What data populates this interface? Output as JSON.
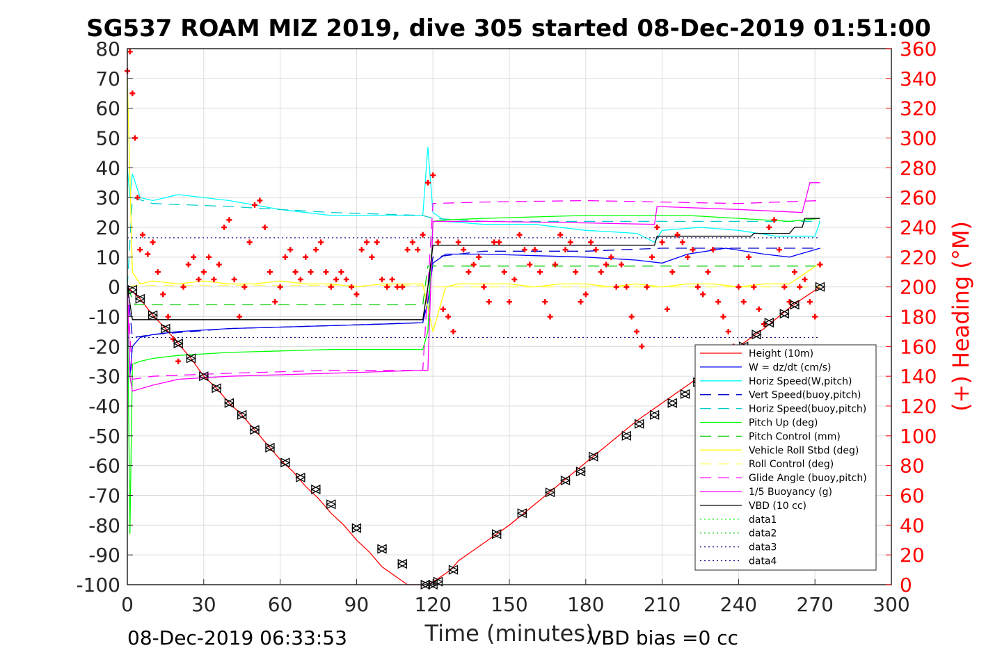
{
  "chart_data": {
    "type": "line",
    "title": "SG537 ROAM MIZ 2019, dive 305 started 08-Dec-2019 01:51:00",
    "xlabel": "Time (minutes)",
    "ylabel_right": "(+) Heading (°M)",
    "footer_left": "08-Dec-2019 06:33:53",
    "footer_right": "VBD bias =0 cc",
    "xlim": [
      0,
      300
    ],
    "ylim": [
      -100,
      80
    ],
    "ylim_right": [
      0,
      360
    ],
    "xticks": [
      "0",
      "30",
      "60",
      "90",
      "120",
      "150",
      "180",
      "210",
      "240",
      "270",
      "300"
    ],
    "yticks": [
      "80",
      "70",
      "60",
      "50",
      "40",
      "30",
      "20",
      "10",
      "0",
      "-10",
      "-20",
      "-30",
      "-40",
      "-50",
      "-60",
      "-70",
      "-80",
      "-90",
      "-100"
    ],
    "yticks_right": [
      "360",
      "340",
      "320",
      "300",
      "280",
      "260",
      "240",
      "220",
      "200",
      "180",
      "160",
      "140",
      "120",
      "100",
      "80",
      "60",
      "40",
      "20",
      "0"
    ],
    "grid": true,
    "legend_position": "bottom-right",
    "series": [
      {
        "name": "Height (10m)",
        "color": "#ff0000",
        "style": "solid",
        "x": [
          0,
          5,
          10,
          15,
          20,
          25,
          30,
          35,
          40,
          45,
          50,
          55,
          60,
          65,
          70,
          75,
          80,
          85,
          90,
          95,
          100,
          105,
          110,
          115,
          118,
          122,
          127,
          130,
          140,
          150,
          160,
          170,
          180,
          190,
          200,
          210,
          220,
          230,
          240,
          250,
          260,
          265,
          272
        ],
        "y": [
          0,
          -4,
          -9.5,
          -14,
          -19,
          -24,
          -30,
          -34,
          -39,
          -43,
          -48,
          -53,
          -58,
          -62,
          -67,
          -71,
          -76,
          -80,
          -85,
          -89,
          -94,
          -97,
          -100,
          -100,
          -100,
          -98,
          -95,
          -92,
          -86,
          -80,
          -73,
          -66,
          -59,
          -52,
          -45,
          -39,
          -33,
          -27,
          -20,
          -14,
          -7,
          -4,
          0
        ]
      },
      {
        "name": "W = dz/dt (cm/s)",
        "color": "#0000ff",
        "style": "solid",
        "x": [
          0,
          1,
          2,
          5,
          10,
          20,
          40,
          60,
          80,
          100,
          116,
          118,
          120,
          125,
          140,
          160,
          180,
          200,
          210,
          220,
          235,
          250,
          260,
          272
        ],
        "y": [
          0,
          -30,
          -20,
          -17,
          -16,
          -15,
          -14,
          -13.5,
          -13,
          -12.5,
          -12,
          -5,
          8,
          11,
          11,
          10.5,
          10,
          9,
          8,
          11,
          13,
          11,
          10,
          13
        ]
      },
      {
        "name": "Horiz Speed(W,pitch)",
        "color": "#00ffff",
        "style": "solid",
        "x": [
          0,
          1,
          2,
          5,
          10,
          20,
          40,
          60,
          80,
          100,
          116,
          118,
          120,
          125,
          140,
          160,
          180,
          200,
          207,
          210,
          225,
          240,
          255,
          270,
          272
        ],
        "y": [
          40,
          30,
          38,
          30,
          29,
          31,
          29,
          26,
          24,
          24,
          24,
          47,
          25,
          22,
          21,
          21,
          19,
          18,
          15,
          19,
          20,
          19,
          17,
          17,
          22
        ]
      },
      {
        "name": "Vert Speed(buoy,pitch)",
        "color": "#0000cc",
        "style": "dash",
        "x": [
          0,
          2,
          10,
          40,
          80,
          116,
          120,
          140,
          180,
          210,
          240,
          272
        ],
        "y": [
          0,
          -17,
          -16,
          -14,
          -13,
          -12,
          10,
          12,
          12,
          13,
          13,
          13
        ]
      },
      {
        "name": "Horiz Speed(buoy,pitch)",
        "color": "#00cccc",
        "style": "dash",
        "x": [
          0,
          2,
          10,
          40,
          80,
          116,
          120,
          140,
          180,
          210,
          240,
          272
        ],
        "y": [
          0,
          30,
          28,
          27,
          25,
          24,
          23,
          22,
          22,
          22,
          22,
          22
        ]
      },
      {
        "name": "Pitch Up (deg)",
        "color": "#00ff00",
        "style": "solid",
        "x": [
          0,
          1,
          2,
          5,
          10,
          20,
          40,
          60,
          80,
          100,
          116,
          118,
          120,
          125,
          140,
          160,
          180,
          200,
          220,
          240,
          260,
          272
        ],
        "y": [
          0,
          -83,
          -26,
          -25,
          -24,
          -23,
          -22,
          -21.5,
          -21,
          -21,
          -21,
          -15,
          22,
          22.5,
          23,
          23.5,
          24,
          24,
          24,
          23,
          22,
          23
        ]
      },
      {
        "name": "Pitch Control (mm)",
        "color": "#00cc00",
        "style": "dash",
        "x": [
          0,
          3,
          116,
          118,
          272
        ],
        "y": [
          0,
          -6,
          -6,
          7,
          7
        ]
      },
      {
        "name": "Vehicle Roll Stbd (deg)",
        "color": "#ffff00",
        "style": "solid",
        "x": [
          0,
          2,
          5,
          10,
          20,
          30,
          40,
          50,
          60,
          70,
          80,
          90,
          100,
          110,
          116,
          120,
          125,
          130,
          140,
          150,
          160,
          170,
          180,
          190,
          200,
          210,
          220,
          230,
          240,
          250,
          260,
          272
        ],
        "y": [
          70,
          5,
          1,
          2,
          1,
          2,
          1,
          1,
          2,
          1,
          1,
          0,
          1,
          1,
          1,
          -15,
          0,
          1,
          1,
          1,
          0,
          1,
          1,
          0,
          1,
          0,
          1,
          1,
          0,
          1,
          1,
          8
        ]
      },
      {
        "name": "Roll Control (deg)",
        "color": "#ffff66",
        "style": "dash",
        "x": [
          0,
          3,
          116,
          118,
          272
        ],
        "y": [
          0,
          0.5,
          0.5,
          0,
          0
        ]
      },
      {
        "name": "Glide Angle (buoy,pitch)",
        "color": "#ff00ff",
        "style": "dash",
        "x": [
          0,
          2,
          10,
          40,
          80,
          116,
          120,
          140,
          180,
          210,
          240,
          272
        ],
        "y": [
          0,
          -31,
          -30,
          -29,
          -28,
          -28,
          28,
          28.5,
          29,
          28.5,
          28,
          29
        ]
      },
      {
        "name": "1/5 Buoyancy (g)",
        "color": "#ff00ff",
        "style": "solid",
        "x": [
          0,
          1,
          2,
          10,
          20,
          40,
          80,
          116,
          118,
          120,
          140,
          180,
          207,
          208,
          240,
          265,
          268,
          272
        ],
        "y": [
          0,
          -30,
          -35,
          -33,
          -31,
          -30,
          -29,
          -28,
          -28,
          22,
          22,
          21.5,
          21,
          27,
          26,
          25,
          35,
          35
        ]
      },
      {
        "name": "VBD (10 cc)",
        "color": "#000000",
        "style": "solid",
        "x": [
          0,
          2,
          116,
          118,
          120,
          207,
          208,
          245,
          246,
          260,
          262,
          265,
          266,
          272
        ],
        "y": [
          0,
          -11,
          -11,
          0,
          14,
          14,
          17,
          17,
          18,
          18,
          20,
          20,
          23,
          23
        ]
      },
      {
        "name": "data1",
        "color": "#00ff00",
        "style": "dot",
        "x": [],
        "y": []
      },
      {
        "name": "data2",
        "color": "#00cc00",
        "style": "dot",
        "x": [],
        "y": []
      },
      {
        "name": "data3",
        "color": "#000080",
        "style": "dot",
        "x": [
          0,
          272
        ],
        "y": [
          -17,
          -17
        ]
      },
      {
        "name": "data4",
        "color": "#000080",
        "style": "dot",
        "x": [
          0,
          272
        ],
        "y": [
          16.5,
          16.5
        ]
      }
    ],
    "heading_series": {
      "color": "#ff0000",
      "marker": "+",
      "x": [
        0,
        1,
        2,
        3,
        4,
        5,
        6,
        8,
        10,
        12,
        14,
        16,
        18,
        20,
        22,
        24,
        26,
        28,
        30,
        32,
        34,
        36,
        38,
        40,
        42,
        44,
        46,
        48,
        50,
        52,
        54,
        56,
        58,
        60,
        62,
        64,
        66,
        68,
        70,
        72,
        74,
        76,
        78,
        80,
        82,
        84,
        86,
        88,
        90,
        92,
        94,
        96,
        98,
        100,
        102,
        104,
        106,
        108,
        110,
        112,
        114,
        116,
        118,
        120,
        122,
        124,
        126,
        128,
        130,
        132,
        134,
        136,
        138,
        140,
        142,
        144,
        146,
        148,
        150,
        152,
        154,
        156,
        158,
        160,
        162,
        164,
        166,
        168,
        170,
        172,
        174,
        176,
        178,
        180,
        182,
        184,
        186,
        188,
        190,
        192,
        194,
        196,
        198,
        200,
        202,
        204,
        206,
        208,
        210,
        212,
        214,
        216,
        218,
        220,
        222,
        224,
        226,
        228,
        230,
        232,
        234,
        236,
        238,
        240,
        242,
        244,
        246,
        248,
        250,
        252,
        254,
        256,
        258,
        260,
        262,
        264,
        266,
        268,
        270,
        272
      ],
      "y": [
        345,
        358,
        330,
        300,
        260,
        225,
        235,
        222,
        230,
        210,
        195,
        180,
        165,
        150,
        200,
        215,
        220,
        205,
        210,
        220,
        205,
        215,
        240,
        245,
        205,
        180,
        200,
        230,
        255,
        258,
        240,
        210,
        190,
        200,
        220,
        225,
        210,
        205,
        220,
        210,
        225,
        230,
        210,
        200,
        205,
        210,
        205,
        200,
        195,
        225,
        230,
        220,
        230,
        205,
        200,
        205,
        200,
        200,
        225,
        230,
        225,
        235,
        270,
        275,
        230,
        185,
        180,
        170,
        230,
        225,
        210,
        215,
        220,
        200,
        190,
        230,
        230,
        210,
        190,
        205,
        235,
        225,
        215,
        225,
        210,
        190,
        180,
        215,
        235,
        225,
        230,
        210,
        190,
        195,
        230,
        225,
        210,
        215,
        220,
        200,
        215,
        200,
        180,
        170,
        160,
        200,
        220,
        240,
        230,
        185,
        210,
        235,
        230,
        220,
        225,
        200,
        195,
        210,
        225,
        190,
        180,
        170,
        160,
        200,
        190,
        220,
        200,
        185,
        175,
        240,
        245,
        225,
        200,
        190,
        210,
        200,
        205,
        190,
        180,
        215
      ]
    },
    "depth_markers": {
      "color": "#000000",
      "marker": "triangle",
      "x": [
        2,
        5,
        10,
        15,
        20,
        25,
        30,
        35,
        40,
        45,
        50,
        56,
        62,
        68,
        74,
        80,
        90,
        100,
        108,
        117,
        120,
        122,
        128,
        145,
        155,
        166,
        172,
        178,
        183,
        196,
        201,
        207,
        214,
        219,
        224,
        230,
        236,
        242,
        247,
        252,
        258,
        262,
        272
      ],
      "y": [
        -1,
        -4,
        -9.5,
        -14,
        -19,
        -24,
        -30,
        -34,
        -39,
        -43,
        -48,
        -54,
        -59,
        -64,
        -68,
        -73,
        -81,
        -88,
        -93,
        -100,
        -100,
        -99,
        -95,
        -83,
        -76,
        -69,
        -65,
        -62,
        -57,
        -50,
        -46,
        -43,
        -39,
        -36,
        -32,
        -28,
        -24,
        -20,
        -16,
        -12,
        -9,
        -6,
        0
      ]
    }
  }
}
